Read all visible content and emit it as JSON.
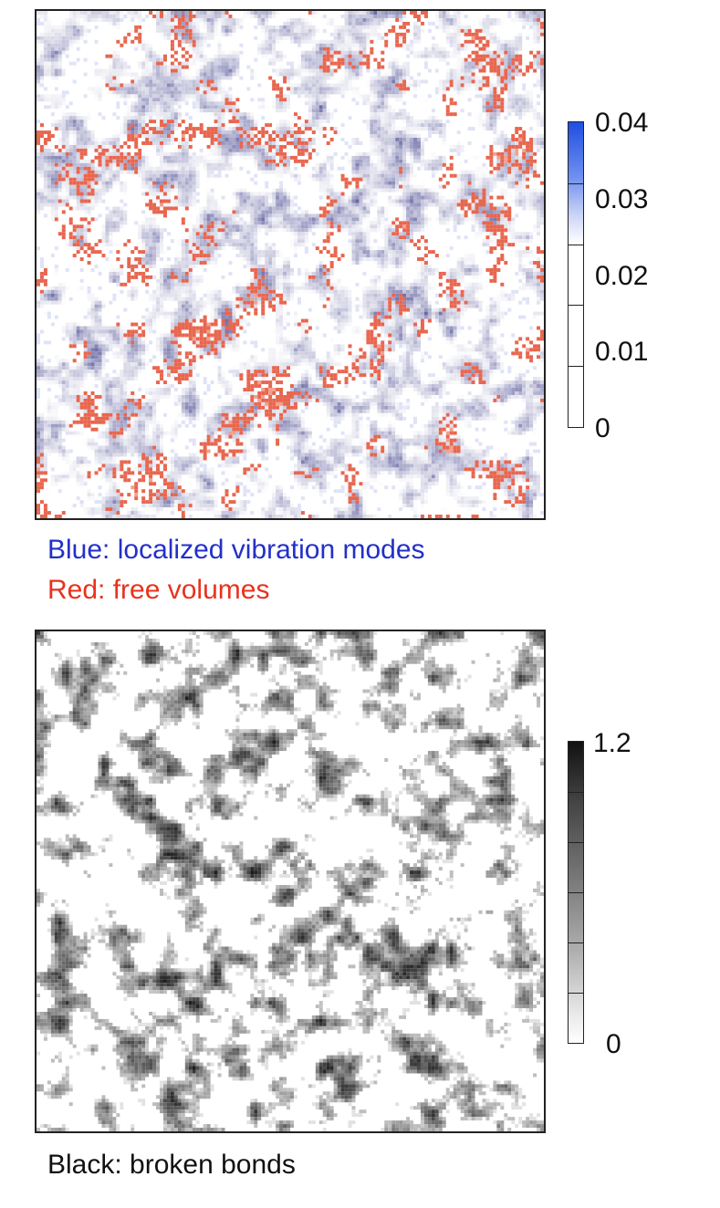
{
  "top_panel": {
    "colorbar": {
      "ticks": [
        "0.04",
        "0.03",
        "0.02",
        "0.01",
        "0"
      ],
      "range": [
        0,
        0.04
      ],
      "colors": {
        "high": "#1f4fe0",
        "low": "#ffffff"
      }
    },
    "caption_blue": "Blue: localized vibration modes",
    "caption_red": "Red: free volumes",
    "colors": {
      "blue": "#2330c8",
      "red": "#e8321e"
    }
  },
  "bottom_panel": {
    "colorbar": {
      "ticks": [
        "1.2",
        "0"
      ],
      "range": [
        0,
        1.2
      ],
      "colors": {
        "high": "#111111",
        "low": "#ffffff"
      }
    },
    "caption": "Black: broken bonds"
  }
}
